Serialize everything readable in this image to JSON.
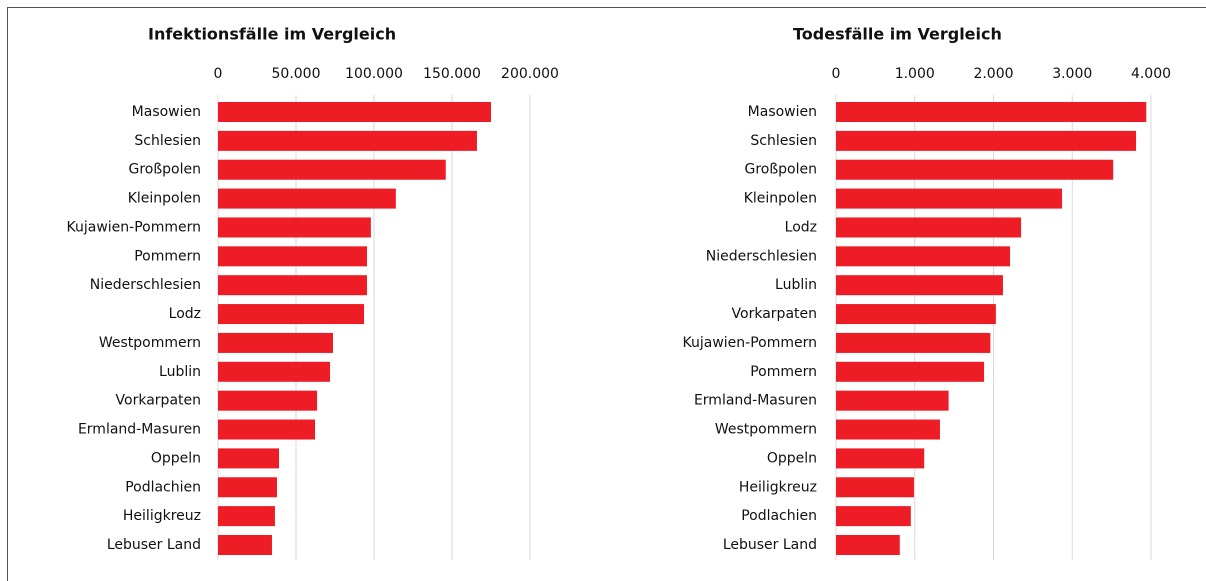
{
  "chart_data": [
    {
      "type": "bar",
      "orientation": "horizontal",
      "title": "Infektionsfälle im Vergleich",
      "categories": [
        "Masowien",
        "Schlesien",
        "Großpolen",
        "Kleinpolen",
        "Kujawien-Pommern",
        "Pommern",
        "Niederschlesien",
        "Lodz",
        "Westpommern",
        "Lublin",
        "Vorkarpaten",
        "Ermland-Masuren",
        "Oppeln",
        "Podlachien",
        "Heiligkreuz",
        "Lebuser Land"
      ],
      "values": [
        175000,
        166000,
        146000,
        114000,
        98000,
        95500,
        95500,
        93600,
        73700,
        71800,
        63500,
        62200,
        39100,
        37800,
        36500,
        34600
      ],
      "color": "#ee1c25",
      "xlim": [
        0,
        200000
      ],
      "xticks": [
        0,
        {
          "value": 50000,
          "label": "50.000"
        },
        {
          "value": 100000,
          "label": "100.000"
        },
        {
          "value": 150000,
          "label": "150.000"
        },
        {
          "value": 200000,
          "label": "200.000"
        }
      ],
      "grid": true
    },
    {
      "type": "bar",
      "orientation": "horizontal",
      "title": "Todesfälle im Vergleich",
      "categories": [
        "Masowien",
        "Schlesien",
        "Großpolen",
        "Kleinpolen",
        "Lodz",
        "Niederschlesien",
        "Lublin",
        "Vorkarpaten",
        "Kujawien-Pommern",
        "Pommern",
        "Ermland-Masuren",
        "Westpommern",
        "Oppeln",
        "Heiligkreuz",
        "Podlachien",
        "Lebuser Land"
      ],
      "values": [
        3940,
        3810,
        3520,
        2870,
        2350,
        2210,
        2120,
        2030,
        1960,
        1880,
        1430,
        1320,
        1120,
        990,
        950,
        810
      ],
      "color": "#ee1c25",
      "xlim": [
        0,
        4000
      ],
      "xticks": [
        0,
        {
          "value": 1000,
          "label": "1.000"
        },
        {
          "value": 2000,
          "label": "2.000"
        },
        {
          "value": 3000,
          "label": "3.000"
        },
        {
          "value": 4000,
          "label": "4.000"
        }
      ],
      "grid": true
    }
  ]
}
